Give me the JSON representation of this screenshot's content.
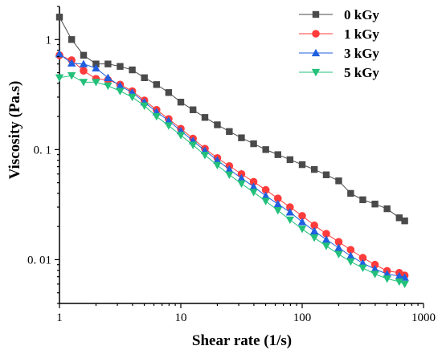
{
  "chart_data": {
    "type": "line",
    "xlabel": "Shear rate (1/s)",
    "ylabel": "Viscosity (Pa.s)",
    "x_scale": "log",
    "y_scale": "log",
    "xlim": [
      1,
      1000
    ],
    "ylim": [
      0.004,
      2
    ],
    "x_ticks": [
      {
        "value": 1,
        "label": "1"
      },
      {
        "value": 10,
        "label": "10"
      },
      {
        "value": 100,
        "label": "100"
      },
      {
        "value": 1000,
        "label": "1000"
      }
    ],
    "y_ticks": [
      {
        "value": 1,
        "label": "1"
      },
      {
        "value": 0.1,
        "label": "0. 1"
      },
      {
        "value": 0.01,
        "label": "0. 01"
      }
    ],
    "grid": false,
    "legend_position": "top-right",
    "x": [
      1.0,
      1.26,
      1.58,
      2.0,
      2.51,
      3.16,
      3.98,
      5.01,
      6.31,
      7.94,
      10.0,
      12.6,
      15.8,
      20.0,
      25.1,
      31.6,
      39.8,
      50.1,
      63.1,
      79.4,
      100,
      126,
      158,
      200,
      251,
      316,
      398,
      501,
      631,
      700
    ],
    "series": [
      {
        "name": "0 kGy",
        "color": "#4a4a4a",
        "marker": "square",
        "values": [
          1.6,
          1.0,
          0.72,
          0.6,
          0.6,
          0.57,
          0.53,
          0.45,
          0.39,
          0.33,
          0.27,
          0.23,
          0.196,
          0.168,
          0.146,
          0.128,
          0.113,
          0.1,
          0.09,
          0.081,
          0.073,
          0.066,
          0.059,
          0.052,
          0.04,
          0.035,
          0.032,
          0.029,
          0.024,
          0.0225
        ]
      },
      {
        "name": "1 kGy",
        "color": "#ff3b3b",
        "marker": "circle",
        "values": [
          0.72,
          0.65,
          0.52,
          0.44,
          0.43,
          0.39,
          0.34,
          0.28,
          0.23,
          0.19,
          0.155,
          0.126,
          0.102,
          0.084,
          0.071,
          0.06,
          0.051,
          0.043,
          0.036,
          0.03,
          0.025,
          0.0205,
          0.0172,
          0.0145,
          0.0123,
          0.0104,
          0.009,
          0.0079,
          0.0076,
          0.0072
        ]
      },
      {
        "name": "3 kGy",
        "color": "#1f5fe0",
        "marker": "triangle-up",
        "values": [
          0.74,
          0.61,
          0.6,
          0.55,
          0.45,
          0.38,
          0.33,
          0.27,
          0.22,
          0.183,
          0.148,
          0.12,
          0.098,
          0.08,
          0.066,
          0.055,
          0.046,
          0.038,
          0.032,
          0.027,
          0.022,
          0.0182,
          0.0152,
          0.0128,
          0.0108,
          0.0093,
          0.0082,
          0.0074,
          0.0071,
          0.0069
        ]
      },
      {
        "name": "5 kGy",
        "color": "#22c07a",
        "marker": "triangle-down",
        "values": [
          0.45,
          0.47,
          0.41,
          0.41,
          0.38,
          0.34,
          0.3,
          0.25,
          0.2,
          0.165,
          0.135,
          0.11,
          0.089,
          0.072,
          0.059,
          0.049,
          0.041,
          0.034,
          0.028,
          0.023,
          0.019,
          0.0158,
          0.0133,
          0.0112,
          0.0096,
          0.0084,
          0.0074,
          0.0067,
          0.0063,
          0.006
        ]
      }
    ]
  }
}
